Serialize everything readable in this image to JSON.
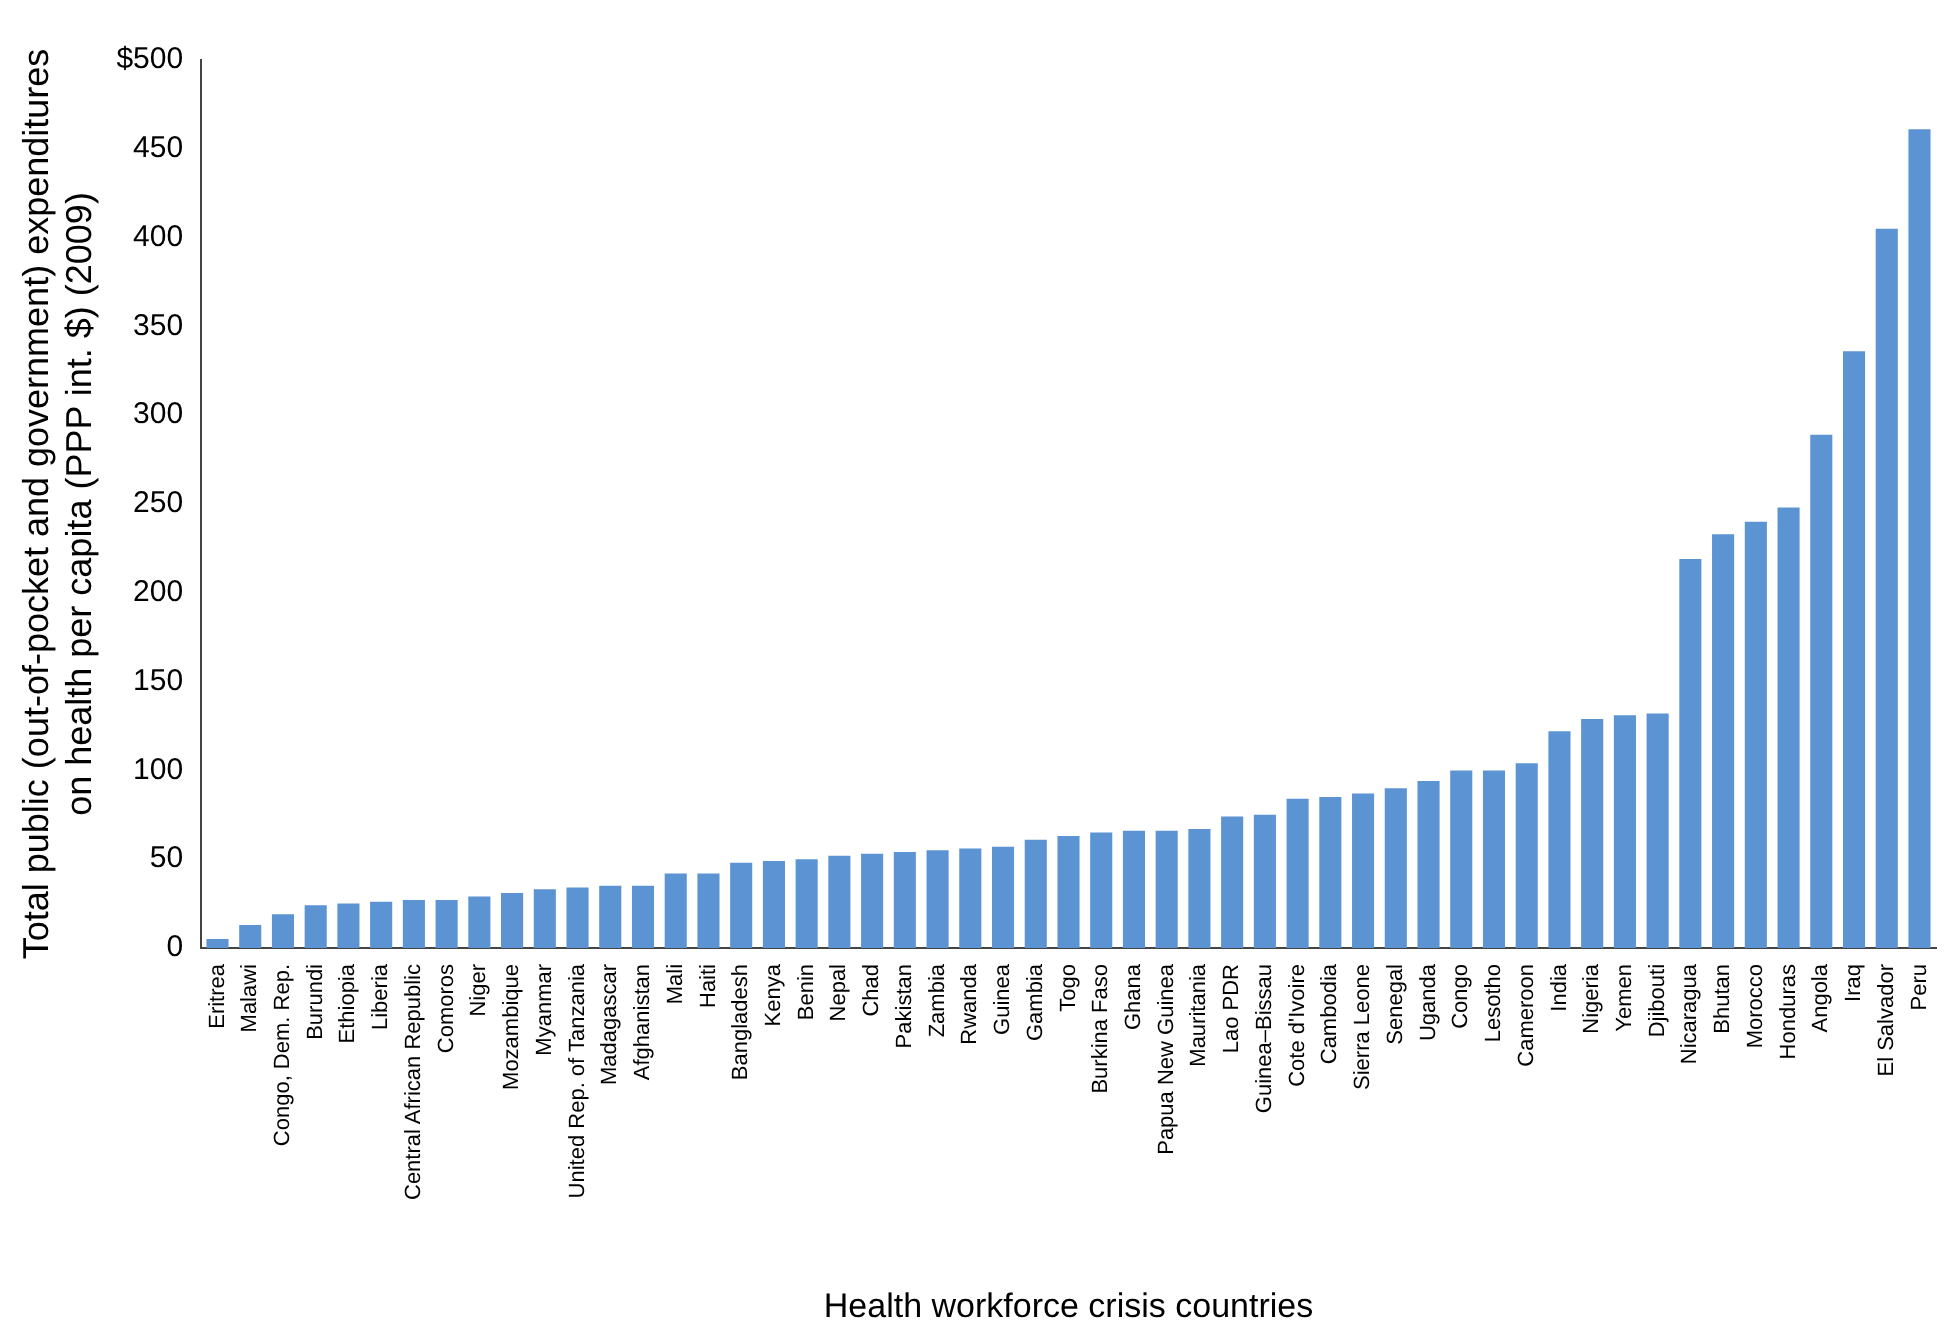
{
  "chart_data": {
    "type": "bar",
    "xlabel": "Health workforce crisis countries",
    "ylabel": "Total public (out-of-pocket and government) expenditures\non health per capita (PPP int. $) (2009)",
    "categories": [
      "Eritrea",
      "Malawi",
      "Congo, Dem. Rep.",
      "Burundi",
      "Ethiopia",
      "Liberia",
      "Central African Republic",
      "Comoros",
      "Niger",
      "Mozambique",
      "Myanmar",
      "United Rep. of Tanzania",
      "Madagascar",
      "Afghanistan",
      "Mali",
      "Haiti",
      "Bangladesh",
      "Kenya",
      "Benin",
      "Nepal",
      "Chad",
      "Pakistan",
      "Zambia",
      "Rwanda",
      "Guinea",
      "Gambia",
      "Togo",
      "Burkina Faso",
      "Ghana",
      "Papua New Guinea",
      "Mauritania",
      "Lao PDR",
      "Guinea–Bissau",
      "Cote d'Ivoire",
      "Cambodia",
      "Sierra Leone",
      "Senegal",
      "Uganda",
      "Congo",
      "Lesotho",
      "Cameroon",
      "India",
      "Nigeria",
      "Yemen",
      "Djibouti",
      "Nicaragua",
      "Bhutan",
      "Morocco",
      "Honduras",
      "Angola",
      "Iraq",
      "El Salvador",
      "Peru"
    ],
    "values": [
      5,
      13,
      19,
      24,
      25,
      26,
      27,
      27,
      29,
      31,
      33,
      34,
      35,
      35,
      42,
      42,
      48,
      49,
      50,
      52,
      53,
      54,
      55,
      56,
      57,
      61,
      63,
      65,
      66,
      66,
      67,
      74,
      75,
      84,
      85,
      87,
      90,
      94,
      100,
      100,
      104,
      122,
      129,
      131,
      132,
      219,
      233,
      240,
      248,
      289,
      336,
      405,
      461
    ],
    "color": "#5b93d3",
    "ylim": [
      0,
      500
    ],
    "yticks": [
      0,
      50,
      100,
      150,
      200,
      250,
      300,
      350,
      400,
      450,
      {
        "value": 500,
        "label": "$500"
      }
    ],
    "grid": false,
    "legend": false
  }
}
